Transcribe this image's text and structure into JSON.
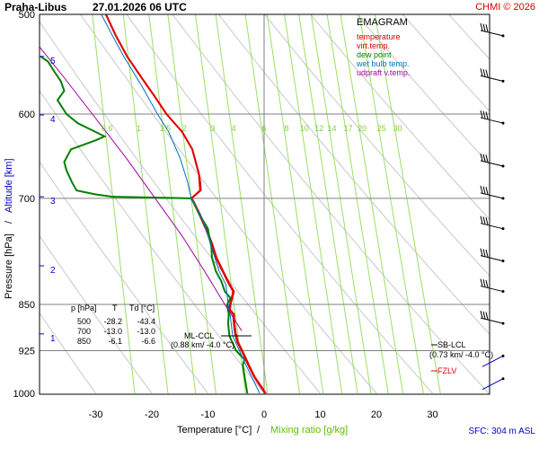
{
  "header": {
    "station": "Praha-Libus",
    "datetime": "27.01.2026 06 UTC",
    "brand": "CHMI © 2026"
  },
  "chart_data": {
    "type": "line",
    "title": "EMAGRAM",
    "xlabel": "Temperature [°C]",
    "xlabel_sep": "/",
    "xlabel2": "Mixing ratio [g/kg]",
    "ylabel": "Pressure [hPa]",
    "ylabel_sep": "/",
    "ylabel2": "Altitude [km]",
    "xlim": [
      -40,
      40
    ],
    "ylim_hpa": [
      1000,
      500
    ],
    "grid": true,
    "legend_placement": "top-right",
    "x_ticks": [
      -30,
      -20,
      -10,
      0,
      10,
      20,
      30
    ],
    "x_tick_labels": [
      "-30",
      "-20",
      "-10",
      "0",
      "10",
      "20",
      "30"
    ],
    "p_ticks": [
      500,
      600,
      700,
      850,
      925,
      1000
    ],
    "p_tick_labels": [
      "500",
      "600",
      "700",
      "850",
      "925",
      "1000"
    ],
    "altitude_ticks": [
      {
        "km": 5,
        "hpa": 540
      },
      {
        "km": 4,
        "hpa": 601
      },
      {
        "km": 3,
        "hpa": 698
      },
      {
        "km": 2,
        "hpa": 792
      },
      {
        "km": 1,
        "hpa": 897
      }
    ],
    "mixing_ratio_labels": [
      "0.6",
      "1",
      "1.5",
      "2",
      "3",
      "4",
      "6",
      "8",
      "10",
      "12",
      "14",
      "17",
      "20",
      "25",
      "30"
    ],
    "legend": [
      {
        "label": "temperature",
        "color": "#e00000"
      },
      {
        "label": "virt.temp.",
        "color": "#e00000"
      },
      {
        "label": "dew point",
        "color": "#008000"
      },
      {
        "label": "wet bulb temp.",
        "color": "#0070c0"
      },
      {
        "label": "udpraft v.temp.",
        "color": "#a000a0"
      }
    ],
    "series": [
      {
        "name": "temperature",
        "color": "#e00000",
        "points": [
          [
            1000,
            0.2
          ],
          [
            985,
            -0.8
          ],
          [
            970,
            -1.8
          ],
          [
            950,
            -2.8
          ],
          [
            925,
            -4.0
          ],
          [
            910,
            -4.8
          ],
          [
            895,
            -5.2
          ],
          [
            880,
            -5.4
          ],
          [
            865,
            -5.5
          ],
          [
            858,
            -6.2
          ],
          [
            850,
            -6.1
          ],
          [
            840,
            -5.8
          ],
          [
            830,
            -5.5
          ],
          [
            815,
            -6.5
          ],
          [
            800,
            -7.4
          ],
          [
            780,
            -8.6
          ],
          [
            760,
            -9.4
          ],
          [
            740,
            -10.4
          ],
          [
            720,
            -11.6
          ],
          [
            705,
            -12.6
          ],
          [
            700,
            -13.0
          ],
          [
            690,
            -11.4
          ],
          [
            680,
            -11.5
          ],
          [
            670,
            -11.6
          ],
          [
            655,
            -12.2
          ],
          [
            640,
            -12.8
          ],
          [
            620,
            -14.6
          ],
          [
            600,
            -17.4
          ],
          [
            580,
            -19.6
          ],
          [
            560,
            -22.0
          ],
          [
            540,
            -24.4
          ],
          [
            520,
            -26.4
          ],
          [
            500,
            -28.2
          ]
        ]
      },
      {
        "name": "virt.temp.",
        "color": "#e00000",
        "points": [
          [
            1000,
            0.4
          ],
          [
            985,
            -0.6
          ],
          [
            970,
            -1.6
          ],
          [
            950,
            -2.6
          ],
          [
            925,
            -3.8
          ],
          [
            910,
            -4.6
          ],
          [
            895,
            -5.0
          ],
          [
            880,
            -5.2
          ],
          [
            865,
            -5.3
          ],
          [
            858,
            -6.0
          ],
          [
            850,
            -5.9
          ],
          [
            840,
            -5.6
          ],
          [
            830,
            -5.3
          ],
          [
            815,
            -6.3
          ],
          [
            800,
            -7.2
          ],
          [
            780,
            -8.4
          ],
          [
            760,
            -9.2
          ],
          [
            740,
            -10.2
          ],
          [
            720,
            -11.4
          ],
          [
            705,
            -12.4
          ],
          [
            700,
            -12.8
          ],
          [
            690,
            -11.2
          ],
          [
            680,
            -11.3
          ],
          [
            670,
            -11.5
          ],
          [
            655,
            -12.1
          ],
          [
            640,
            -12.7
          ],
          [
            620,
            -14.5
          ],
          [
            600,
            -17.3
          ],
          [
            580,
            -19.5
          ],
          [
            560,
            -21.9
          ],
          [
            540,
            -24.3
          ],
          [
            520,
            -26.3
          ],
          [
            500,
            -28.1
          ]
        ]
      },
      {
        "name": "dew point",
        "color": "#008000",
        "points": [
          [
            1000,
            -3.0
          ],
          [
            975,
            -3.4
          ],
          [
            950,
            -3.8
          ],
          [
            940,
            -3.5
          ],
          [
            925,
            -5.0
          ],
          [
            900,
            -6.2
          ],
          [
            880,
            -6.4
          ],
          [
            865,
            -6.3
          ],
          [
            850,
            -6.6
          ],
          [
            840,
            -6.0
          ],
          [
            830,
            -7.0
          ],
          [
            815,
            -7.6
          ],
          [
            800,
            -8.6
          ],
          [
            780,
            -9.3
          ],
          [
            765,
            -9.4
          ],
          [
            750,
            -9.8
          ],
          [
            740,
            -10.0
          ],
          [
            720,
            -11.6
          ],
          [
            705,
            -12.6
          ],
          [
            700,
            -13.0
          ],
          [
            698,
            -27.0
          ],
          [
            695,
            -30.0
          ],
          [
            690,
            -33.4
          ],
          [
            680,
            -34.2
          ],
          [
            665,
            -35.2
          ],
          [
            655,
            -35.6
          ],
          [
            640,
            -34.4
          ],
          [
            630,
            -30.2
          ],
          [
            625,
            -28.4
          ],
          [
            620,
            -30.0
          ],
          [
            610,
            -33.2
          ],
          [
            600,
            -35.2
          ],
          [
            585,
            -36.8
          ],
          [
            575,
            -35.6
          ],
          [
            565,
            -36.2
          ],
          [
            555,
            -37.4
          ],
          [
            545,
            -38.5
          ],
          [
            540,
            -39.8
          ]
        ]
      },
      {
        "name": "wet bulb temp.",
        "color": "#0070c0",
        "points": [
          [
            1000,
            -0.8
          ],
          [
            950,
            -3.2
          ],
          [
            925,
            -4.4
          ],
          [
            900,
            -5.6
          ],
          [
            870,
            -6.0
          ],
          [
            850,
            -6.4
          ],
          [
            820,
            -6.8
          ],
          [
            800,
            -8.0
          ],
          [
            760,
            -9.6
          ],
          [
            730,
            -10.8
          ],
          [
            700,
            -13.0
          ],
          [
            680,
            -13.6
          ],
          [
            650,
            -15.0
          ],
          [
            620,
            -17.0
          ],
          [
            600,
            -19.0
          ],
          [
            570,
            -21.8
          ],
          [
            540,
            -25.0
          ],
          [
            520,
            -27.0
          ],
          [
            500,
            -29.0
          ]
        ]
      },
      {
        "name": "udpraft v.temp.",
        "color": "#a000a0",
        "points": [
          [
            892,
            -4.0
          ],
          [
            850,
            -7.0
          ],
          [
            800,
            -10.6
          ],
          [
            750,
            -14.6
          ],
          [
            700,
            -19.4
          ],
          [
            650,
            -24.6
          ],
          [
            600,
            -30.6
          ],
          [
            560,
            -35.8
          ],
          [
            520,
            -41.6
          ]
        ]
      }
    ],
    "table": {
      "headers": [
        "p [hPa]",
        "T",
        "Td [°C]"
      ],
      "rows": [
        [
          "500",
          "-28.2",
          "-43.4"
        ],
        [
          "700",
          "-13.0",
          "-13.0"
        ],
        [
          "850",
          "-6.1",
          "-6.6"
        ]
      ]
    },
    "annotations": {
      "ml_ccl": {
        "label": "ML-CCL",
        "detail": "(0.88 km/ -4.0 °C)"
      },
      "sb_lcl": {
        "label": "SB-LCL",
        "detail": "(0.73 km/ -4.0 °C)"
      },
      "fzlv": {
        "label": "FZLV"
      }
    },
    "wind_barbs_hpa": [
      520,
      565,
      610,
      660,
      700,
      740,
      785,
      830,
      880,
      940,
      980
    ]
  },
  "footer": {
    "sfc": "SFC: 304 m ASL"
  }
}
